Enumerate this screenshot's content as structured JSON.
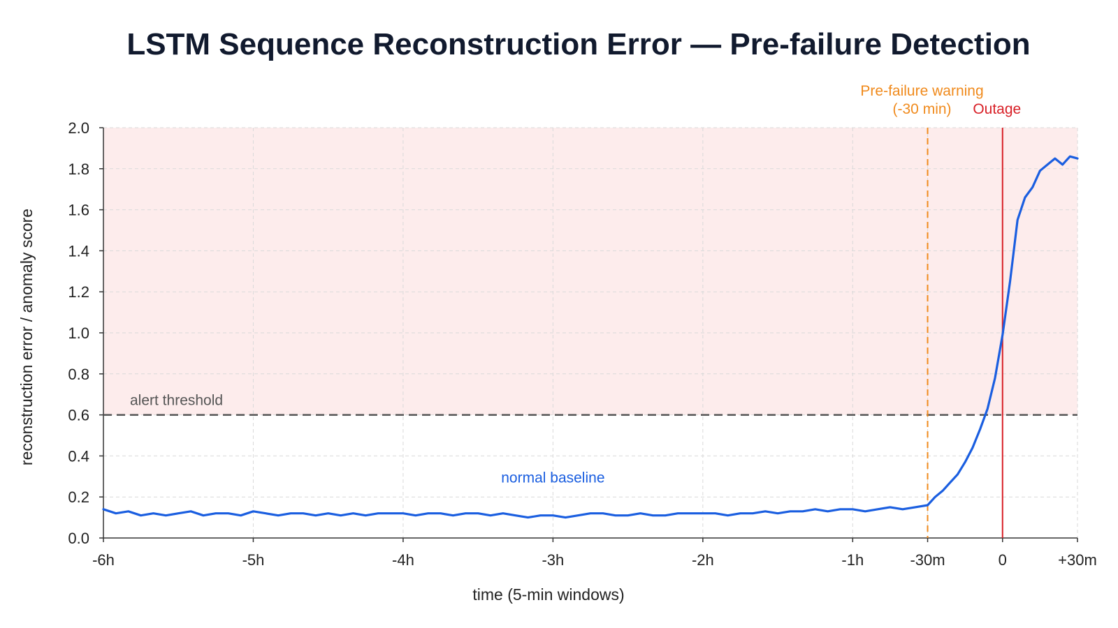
{
  "chart_data": {
    "type": "line",
    "title": "LSTM Sequence Reconstruction Error — Pre-failure Detection",
    "xlabel": "time (5-min windows)",
    "ylabel": "reconstruction error / anomaly score",
    "x_unit": "minutes relative to outage",
    "xlim": [
      -360,
      30
    ],
    "ylim": [
      0,
      2.0
    ],
    "x_ticks": [
      {
        "value": -360,
        "label": "-6h"
      },
      {
        "value": -300,
        "label": "-5h"
      },
      {
        "value": -240,
        "label": "-4h"
      },
      {
        "value": -180,
        "label": "-3h"
      },
      {
        "value": -120,
        "label": "-2h"
      },
      {
        "value": -60,
        "label": "-1h"
      },
      {
        "value": -30,
        "label": "-30m"
      },
      {
        "value": 0,
        "label": "0"
      },
      {
        "value": 30,
        "label": "+30m"
      }
    ],
    "y_ticks": [
      {
        "value": 0.0,
        "label": "0.0"
      },
      {
        "value": 0.2,
        "label": "0.2"
      },
      {
        "value": 0.4,
        "label": "0.4"
      },
      {
        "value": 0.6,
        "label": "0.6"
      },
      {
        "value": 0.8,
        "label": "0.8"
      },
      {
        "value": 1.0,
        "label": "1.0"
      },
      {
        "value": 1.2,
        "label": "1.2"
      },
      {
        "value": 1.4,
        "label": "1.4"
      },
      {
        "value": 1.6,
        "label": "1.6"
      },
      {
        "value": 1.8,
        "label": "1.8"
      },
      {
        "value": 2.0,
        "label": "2.0"
      }
    ],
    "grid": true,
    "anomaly_region": {
      "y_from": 0.6,
      "y_to": 2.0,
      "color": "#fdecec"
    },
    "threshold": {
      "value": 0.6,
      "label": "alert threshold",
      "color": "#555555"
    },
    "markers": [
      {
        "x": -30,
        "label_lines": [
          "Pre-failure warning",
          "(-30 min)"
        ],
        "color": "#f08a1c",
        "style": "dashed"
      },
      {
        "x": 0,
        "label_lines": [
          "Outage"
        ],
        "color": "#d81f26",
        "style": "solid"
      }
    ],
    "annotations": [
      {
        "text": "normal baseline",
        "x": -180,
        "y": 0.27,
        "color": "#1a5ee0"
      }
    ],
    "series": [
      {
        "color": "#1a5ee0",
        "x": [
          -360,
          -355,
          -350,
          -345,
          -340,
          -335,
          -330,
          -325,
          -320,
          -315,
          -310,
          -305,
          -300,
          -295,
          -290,
          -285,
          -280,
          -275,
          -270,
          -265,
          -260,
          -255,
          -250,
          -245,
          -240,
          -235,
          -230,
          -225,
          -220,
          -215,
          -210,
          -205,
          -200,
          -195,
          -190,
          -185,
          -180,
          -175,
          -170,
          -165,
          -160,
          -155,
          -150,
          -145,
          -140,
          -135,
          -130,
          -125,
          -120,
          -115,
          -110,
          -105,
          -100,
          -95,
          -90,
          -85,
          -80,
          -75,
          -70,
          -65,
          -60,
          -55,
          -50,
          -45,
          -40,
          -35,
          -30,
          -27,
          -24,
          -21,
          -18,
          -15,
          -12,
          -9,
          -6,
          -3,
          0,
          3,
          6,
          9,
          12,
          15,
          18,
          21,
          24,
          27,
          30
        ],
        "y": [
          0.14,
          0.12,
          0.13,
          0.11,
          0.12,
          0.11,
          0.12,
          0.13,
          0.11,
          0.12,
          0.12,
          0.11,
          0.13,
          0.12,
          0.11,
          0.12,
          0.12,
          0.11,
          0.12,
          0.11,
          0.12,
          0.11,
          0.12,
          0.12,
          0.12,
          0.11,
          0.12,
          0.12,
          0.11,
          0.12,
          0.12,
          0.11,
          0.12,
          0.11,
          0.1,
          0.11,
          0.11,
          0.1,
          0.11,
          0.12,
          0.12,
          0.11,
          0.11,
          0.12,
          0.11,
          0.11,
          0.12,
          0.12,
          0.12,
          0.12,
          0.11,
          0.12,
          0.12,
          0.13,
          0.12,
          0.13,
          0.13,
          0.14,
          0.13,
          0.14,
          0.14,
          0.13,
          0.14,
          0.15,
          0.14,
          0.15,
          0.16,
          0.2,
          0.23,
          0.27,
          0.31,
          0.37,
          0.44,
          0.53,
          0.63,
          0.78,
          0.99,
          1.25,
          1.55,
          1.66,
          1.71,
          1.79,
          1.82,
          1.85,
          1.82,
          1.86,
          1.85
        ]
      }
    ]
  }
}
